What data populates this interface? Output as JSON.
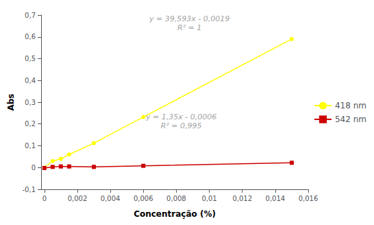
{
  "chart_data": {
    "type": "line",
    "x_label": "Concentração (%)",
    "y_label": "Abs",
    "x": [
      0.0,
      0.0005,
      0.001,
      0.0015,
      0.003,
      0.006,
      0.015
    ],
    "series": [
      {
        "name": "418 nm",
        "color": "#ffff00",
        "marker": "circle",
        "values": [
          0.0,
          0.03,
          0.04,
          0.06,
          0.112,
          0.232,
          0.59
        ]
      },
      {
        "name": "542 nm",
        "color": "#cc0000",
        "marker": "square",
        "values": [
          -0.002,
          0.003,
          0.005,
          0.005,
          0.003,
          0.008,
          0.022
        ]
      }
    ],
    "xlim": [
      -0.0002,
      0.016
    ],
    "ylim": [
      -0.1,
      0.7
    ],
    "xticks": [
      0,
      {
        "value": 0.002,
        "label": "0,002"
      },
      {
        "value": 0.004,
        "label": "0,004"
      },
      {
        "value": 0.006,
        "label": "0,006"
      },
      {
        "value": 0.008,
        "label": "0,008"
      },
      {
        "value": 0.01,
        "label": "0,01"
      },
      {
        "value": 0.012,
        "label": "0,012"
      },
      {
        "value": 0.014,
        "label": "0,014"
      },
      {
        "value": 0.016,
        "label": "0,016"
      }
    ],
    "yticks": [
      {
        "value": -0.1,
        "label": "-0,1"
      },
      0,
      {
        "value": 0.1,
        "label": "0,1"
      },
      {
        "value": 0.2,
        "label": "0,2"
      },
      {
        "value": 0.3,
        "label": "0,3"
      },
      {
        "value": 0.4,
        "label": "0,4"
      },
      {
        "value": 0.5,
        "label": "0,5"
      },
      {
        "value": 0.6,
        "label": "0,6"
      },
      {
        "value": 0.7,
        "label": "0,7"
      }
    ],
    "annotations": [
      {
        "text": "y = 39,593x - 0,0019\nR² = 1",
        "x": 0.0088,
        "y": 0.605,
        "color": "#888888"
      },
      {
        "text": "y = 1,35x - 0,0006\nR² = 0,995",
        "x": 0.0083,
        "y": 0.155,
        "color": "#888888"
      }
    ],
    "grid": false,
    "legend": "right"
  }
}
